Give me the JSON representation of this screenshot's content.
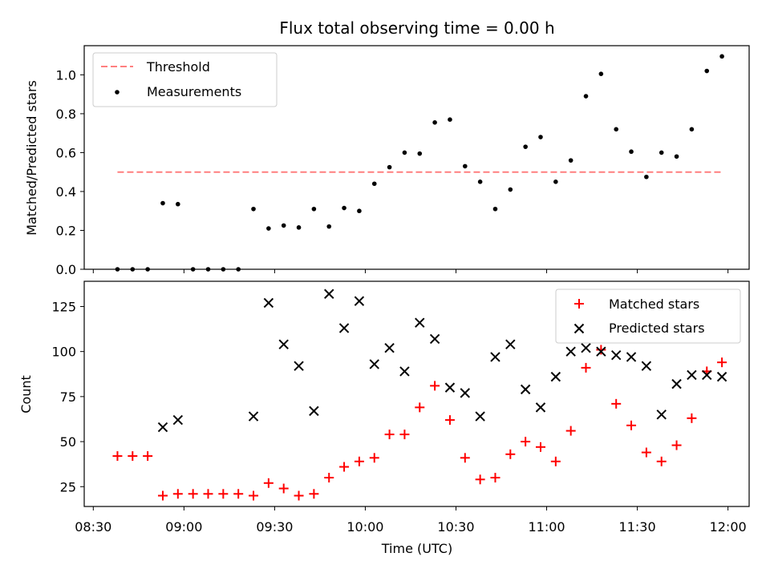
{
  "chart_data": [
    {
      "type": "scatter",
      "title": "Flux total observing time = 0.00 h",
      "xlabel": "",
      "ylabel": "Matched/Predicted stars",
      "ylim": [
        0,
        1.15
      ],
      "yticks": [
        "0.0",
        "0.2",
        "0.4",
        "0.6",
        "0.8",
        "1.0"
      ],
      "legend_position": "top-left",
      "threshold": {
        "name": "Threshold",
        "value": 0.5,
        "x_start": "08:38",
        "x_end": "11:58",
        "color": "#ff7f7f"
      },
      "series": [
        {
          "name": "Measurements",
          "color": "#000000",
          "x": [
            "08:38",
            "08:43",
            "08:48",
            "08:53",
            "08:58",
            "09:03",
            "09:08",
            "09:13",
            "09:18",
            "09:23",
            "09:28",
            "09:33",
            "09:38",
            "09:43",
            "09:48",
            "09:53",
            "09:58",
            "10:03",
            "10:08",
            "10:13",
            "10:18",
            "10:23",
            "10:28",
            "10:33",
            "10:38",
            "10:43",
            "10:48",
            "10:53",
            "10:58",
            "11:03",
            "11:08",
            "11:13",
            "11:18",
            "11:23",
            "11:28",
            "11:33",
            "11:38",
            "11:43",
            "11:48",
            "11:53",
            "11:58"
          ],
          "y": [
            0.0,
            0.0,
            0.0,
            0.34,
            0.335,
            0.0,
            0.0,
            0.0,
            0.0,
            0.31,
            0.21,
            0.225,
            0.215,
            0.31,
            0.22,
            0.315,
            0.3,
            0.44,
            0.525,
            0.6,
            0.595,
            0.755,
            0.77,
            0.53,
            0.45,
            0.31,
            0.41,
            0.63,
            0.68,
            0.45,
            0.56,
            0.89,
            1.005,
            0.72,
            0.605,
            0.475,
            0.6,
            0.58,
            0.72,
            1.02,
            1.095
          ]
        }
      ]
    },
    {
      "type": "scatter",
      "title": "",
      "xlabel": "Time (UTC)",
      "ylabel": "Count",
      "ylim": [
        14,
        139
      ],
      "yticks": [
        "25",
        "50",
        "75",
        "100",
        "125"
      ],
      "xticks": [
        "08:30",
        "09:00",
        "09:30",
        "10:00",
        "10:30",
        "11:00",
        "11:30",
        "12:00"
      ],
      "legend_position": "top-right",
      "series": [
        {
          "name": "Matched stars",
          "color": "#ff0000",
          "marker": "plus",
          "x": [
            "08:38",
            "08:43",
            "08:48",
            "08:53",
            "08:58",
            "09:03",
            "09:08",
            "09:13",
            "09:18",
            "09:23",
            "09:28",
            "09:33",
            "09:38",
            "09:43",
            "09:48",
            "09:53",
            "09:58",
            "10:03",
            "10:08",
            "10:13",
            "10:18",
            "10:23",
            "10:28",
            "10:33",
            "10:38",
            "10:43",
            "10:48",
            "10:53",
            "10:58",
            "11:03",
            "11:08",
            "11:13",
            "11:18",
            "11:23",
            "11:28",
            "11:33",
            "11:38",
            "11:43",
            "11:48",
            "11:53",
            "11:58"
          ],
          "y": [
            42,
            42,
            42,
            20,
            21,
            21,
            21,
            21,
            21,
            20,
            27,
            24,
            20,
            21,
            30,
            36,
            39,
            41,
            54,
            54,
            69,
            81,
            62,
            41,
            29,
            30,
            43,
            50,
            47,
            39,
            56,
            91,
            101,
            71,
            59,
            44,
            39,
            48,
            63,
            89,
            94
          ]
        },
        {
          "name": "Predicted stars",
          "color": "#000000",
          "marker": "x",
          "x": [
            "08:53",
            "08:58",
            "09:23",
            "09:28",
            "09:33",
            "09:38",
            "09:43",
            "09:48",
            "09:53",
            "09:58",
            "10:03",
            "10:08",
            "10:13",
            "10:18",
            "10:23",
            "10:28",
            "10:33",
            "10:38",
            "10:43",
            "10:48",
            "10:53",
            "10:58",
            "11:03",
            "11:08",
            "11:13",
            "11:18",
            "11:23",
            "11:28",
            "11:33",
            "11:38",
            "11:43",
            "11:48",
            "11:53",
            "11:58"
          ],
          "y": [
            58,
            62,
            64,
            127,
            104,
            92,
            67,
            132,
            113,
            128,
            93,
            102,
            89,
            116,
            107,
            80,
            77,
            64,
            97,
            104,
            79,
            69,
            86,
            100,
            102,
            100,
            98,
            97,
            92,
            65,
            82,
            87,
            87,
            86
          ]
        }
      ]
    }
  ]
}
